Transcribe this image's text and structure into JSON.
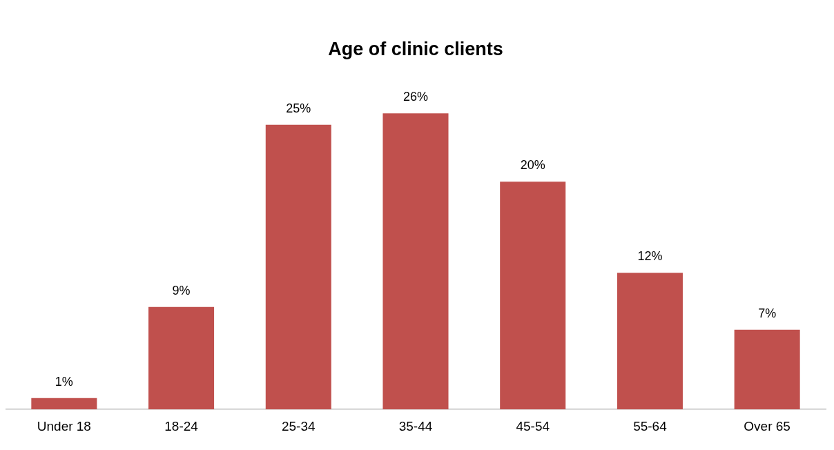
{
  "chart_data": {
    "type": "bar",
    "title": "Age of clinic clients",
    "categories": [
      "Under 18",
      "18-24",
      "25-34",
      "35-44",
      "45-54",
      "55-64",
      "Over 65"
    ],
    "values": [
      1,
      9,
      25,
      26,
      20,
      12,
      7
    ],
    "value_labels": [
      "1%",
      "9%",
      "25%",
      "26%",
      "20%",
      "12%",
      "7%"
    ],
    "color": "#c0504d",
    "grid": false,
    "legend": false
  }
}
